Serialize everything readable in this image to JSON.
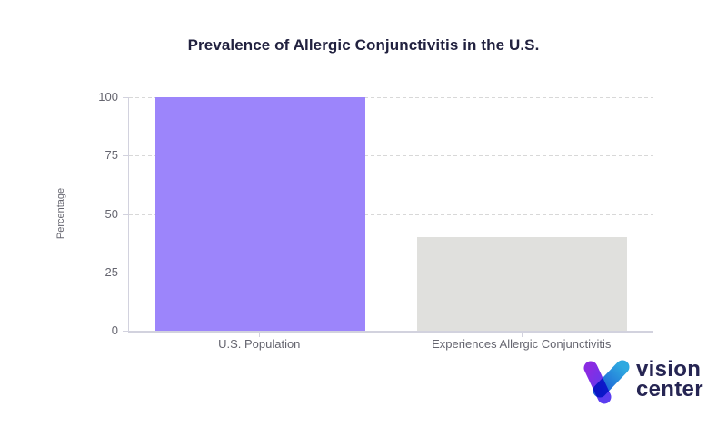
{
  "chart_data": {
    "type": "bar",
    "title": "Prevalence of Allergic Conjunctivitis in the U.S.",
    "categories": [
      "U.S. Population",
      "Experiences Allergic Conjunctivitis"
    ],
    "values": [
      100,
      40
    ],
    "bar_colors": [
      "#9c85fb",
      "#e0e0dd"
    ],
    "xlabel": "",
    "ylabel": "Percentage",
    "ylim": [
      0,
      100
    ],
    "yticks": [
      0,
      25,
      50,
      75,
      100
    ],
    "grid": "horizontal-dashed",
    "legend": "none"
  },
  "colors": {
    "title_text": "#21213f",
    "axis_text": "#65656f",
    "grid_line": "#d8d8d8",
    "axis_line": "#d2d2de",
    "logo_text": "#262553"
  },
  "logo": {
    "line1": "vision",
    "line2": "center",
    "mark": "v-checkmark-icon",
    "mark_gradient_left": [
      "#8a2be2",
      "#5b3df0"
    ],
    "mark_gradient_right": [
      "#2fa9e0",
      "#1d5fd6"
    ]
  }
}
